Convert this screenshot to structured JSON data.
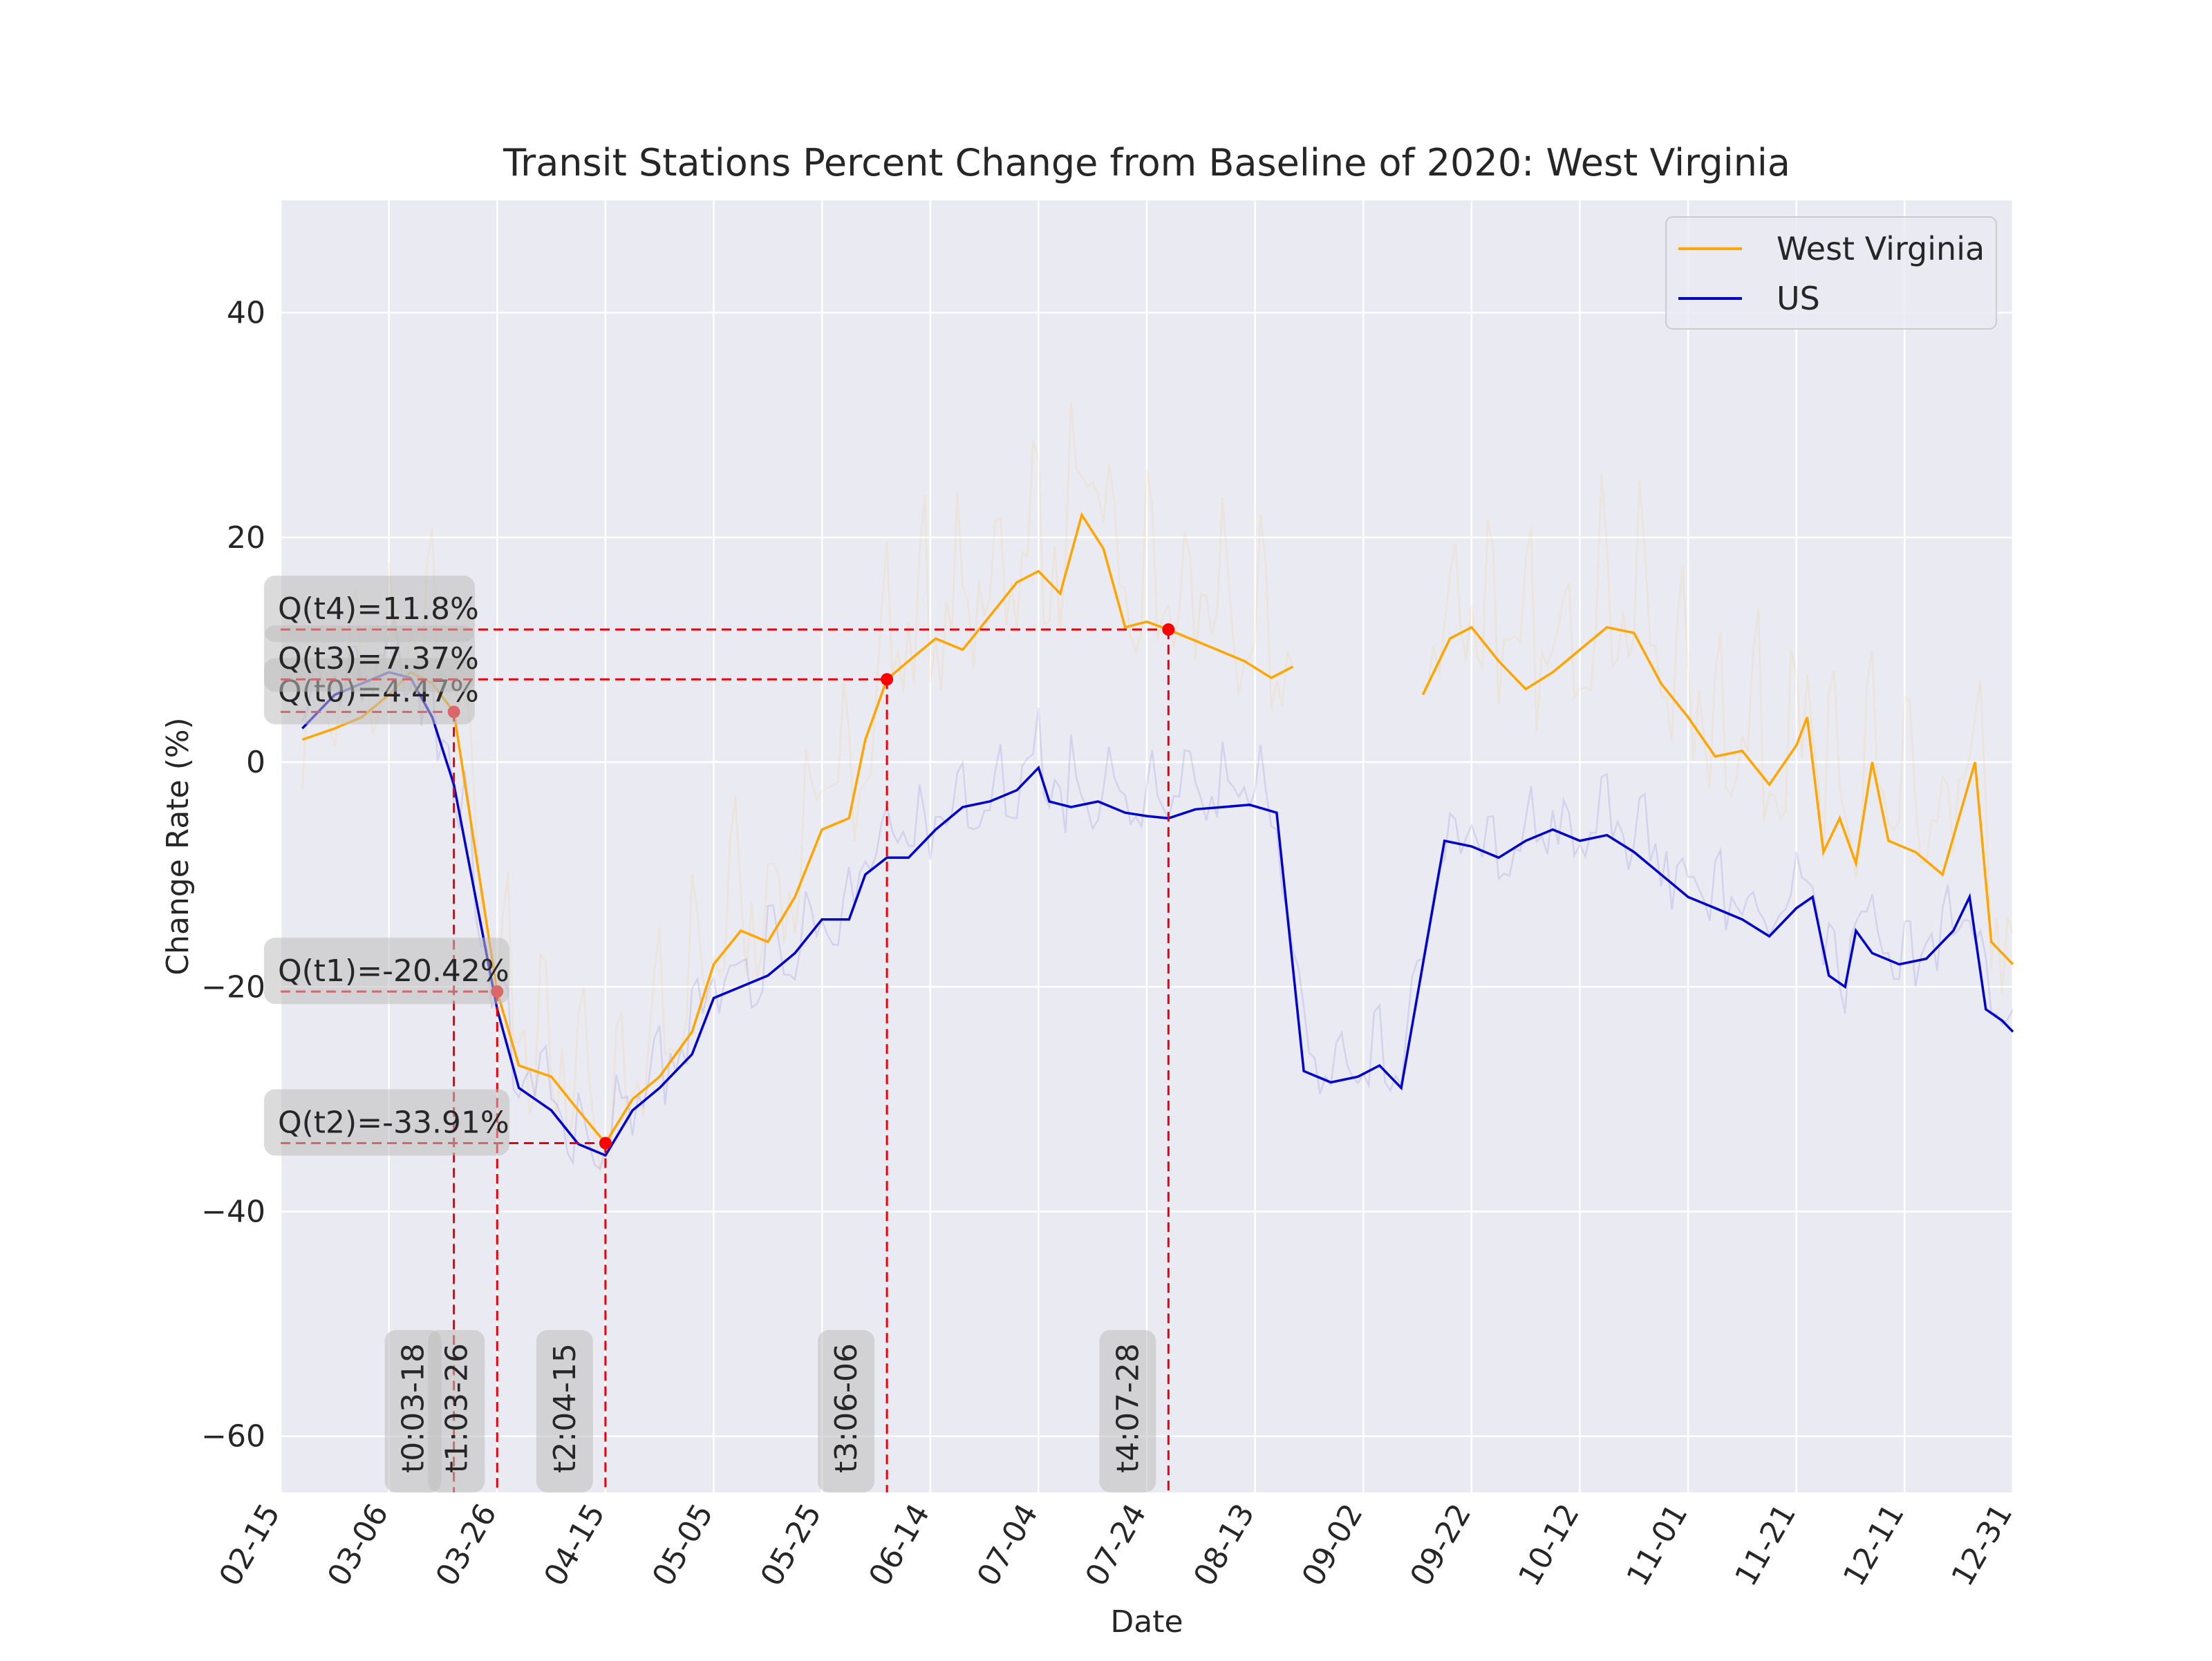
{
  "chart_data": {
    "type": "line",
    "title": "Transit Stations Percent Change from Baseline of 2020: West Virginia",
    "xlabel": "Date",
    "ylabel": "Change Rate (%)",
    "ylim": [
      -65,
      50
    ],
    "yticks": [
      -60,
      -40,
      -20,
      0,
      20,
      40
    ],
    "y_tick_labels": [
      "−60",
      "−40",
      "−20",
      "0",
      "20",
      "40"
    ],
    "x_tick_labels": [
      "02-15",
      "03-06",
      "03-26",
      "04-15",
      "05-05",
      "05-25",
      "06-14",
      "07-04",
      "07-24",
      "08-13",
      "09-02",
      "09-22",
      "10-12",
      "11-01",
      "11-21",
      "12-11",
      "12-31"
    ],
    "x_range": [
      "2020-02-15",
      "2020-12-31"
    ],
    "grid": true,
    "legend_position": "top-right",
    "series": [
      {
        "name": "West Virginia",
        "color": "#ffa500",
        "smoothed": [
          [
            "02-19",
            2
          ],
          [
            "02-25",
            3
          ],
          [
            "03-01",
            4
          ],
          [
            "03-06",
            6
          ],
          [
            "03-10",
            8
          ],
          [
            "03-14",
            7
          ],
          [
            "03-18",
            4.47
          ],
          [
            "03-22",
            -8
          ],
          [
            "03-26",
            -20.42
          ],
          [
            "03-30",
            -27
          ],
          [
            "04-05",
            -28
          ],
          [
            "04-10",
            -31
          ],
          [
            "04-15",
            -33.91
          ],
          [
            "04-20",
            -30
          ],
          [
            "04-25",
            -28
          ],
          [
            "05-01",
            -24
          ],
          [
            "05-05",
            -18
          ],
          [
            "05-10",
            -15
          ],
          [
            "05-15",
            -16
          ],
          [
            "05-20",
            -12
          ],
          [
            "05-25",
            -6
          ],
          [
            "05-30",
            -5
          ],
          [
            "06-02",
            2
          ],
          [
            "06-06",
            7.37
          ],
          [
            "06-10",
            9
          ],
          [
            "06-15",
            11
          ],
          [
            "06-20",
            10
          ],
          [
            "06-25",
            13
          ],
          [
            "06-30",
            16
          ],
          [
            "07-04",
            17
          ],
          [
            "07-08",
            15
          ],
          [
            "07-12",
            22
          ],
          [
            "07-16",
            19
          ],
          [
            "07-20",
            12
          ],
          [
            "07-24",
            12.5
          ],
          [
            "07-28",
            11.8
          ],
          [
            "08-01",
            11
          ],
          [
            "08-06",
            10
          ],
          [
            "08-11",
            9
          ],
          [
            "08-16",
            7.5
          ],
          [
            "08-20",
            8.5
          ]
        ],
        "smoothed_2": [
          [
            "09-13",
            6
          ],
          [
            "09-18",
            11
          ],
          [
            "09-22",
            12
          ],
          [
            "09-27",
            9
          ],
          [
            "10-02",
            6.5
          ],
          [
            "10-07",
            8
          ],
          [
            "10-12",
            10
          ],
          [
            "10-17",
            12
          ],
          [
            "10-22",
            11.5
          ],
          [
            "10-27",
            7
          ],
          [
            "11-01",
            4
          ],
          [
            "11-06",
            0.5
          ],
          [
            "11-11",
            1
          ],
          [
            "11-16",
            -2
          ],
          [
            "11-21",
            1.5
          ],
          [
            "11-23",
            4
          ],
          [
            "11-26",
            -8
          ],
          [
            "11-29",
            -5
          ],
          [
            "12-02",
            -9
          ],
          [
            "12-05",
            0
          ],
          [
            "12-08",
            -7
          ],
          [
            "12-13",
            -8
          ],
          [
            "12-18",
            -10
          ],
          [
            "12-21",
            -5
          ],
          [
            "12-24",
            0
          ],
          [
            "12-27",
            -16
          ],
          [
            "12-31",
            -18
          ]
        ]
      },
      {
        "name": "US",
        "color": "#0000cd",
        "smoothed": [
          [
            "02-19",
            3
          ],
          [
            "02-25",
            6
          ],
          [
            "03-01",
            7
          ],
          [
            "03-06",
            8
          ],
          [
            "03-10",
            7.5
          ],
          [
            "03-14",
            4
          ],
          [
            "03-18",
            -2
          ],
          [
            "03-22",
            -12
          ],
          [
            "03-26",
            -22
          ],
          [
            "03-30",
            -29
          ],
          [
            "04-05",
            -31
          ],
          [
            "04-10",
            -34
          ],
          [
            "04-15",
            -35
          ],
          [
            "04-20",
            -31
          ],
          [
            "04-25",
            -29
          ],
          [
            "05-01",
            -26
          ],
          [
            "05-05",
            -21
          ],
          [
            "05-10",
            -20
          ],
          [
            "05-15",
            -19
          ],
          [
            "05-20",
            -17
          ],
          [
            "05-25",
            -14
          ],
          [
            "05-30",
            -14
          ],
          [
            "06-02",
            -10
          ],
          [
            "06-06",
            -8.5
          ],
          [
            "06-10",
            -8.5
          ],
          [
            "06-15",
            -6
          ],
          [
            "06-20",
            -4
          ],
          [
            "06-25",
            -3.5
          ],
          [
            "06-30",
            -2.5
          ],
          [
            "07-04",
            -0.5
          ],
          [
            "07-06",
            -3.5
          ],
          [
            "07-10",
            -4
          ],
          [
            "07-15",
            -3.5
          ],
          [
            "07-20",
            -4.5
          ],
          [
            "07-24",
            -4.8
          ],
          [
            "07-28",
            -5
          ],
          [
            "08-02",
            -4.2
          ],
          [
            "08-07",
            -4
          ],
          [
            "08-12",
            -3.8
          ],
          [
            "08-17",
            -4.5
          ],
          [
            "08-22",
            -27.5
          ],
          [
            "08-27",
            -28.5
          ],
          [
            "09-01",
            -28
          ],
          [
            "09-05",
            -27
          ],
          [
            "09-09",
            -29
          ],
          [
            "09-17",
            -7
          ],
          [
            "09-22",
            -7.5
          ],
          [
            "09-27",
            -8.5
          ],
          [
            "10-02",
            -7
          ],
          [
            "10-07",
            -6
          ],
          [
            "10-12",
            -7
          ],
          [
            "10-17",
            -6.5
          ],
          [
            "10-22",
            -8
          ],
          [
            "10-27",
            -10
          ],
          [
            "11-01",
            -12
          ],
          [
            "11-06",
            -13
          ],
          [
            "11-11",
            -14
          ],
          [
            "11-16",
            -15.5
          ],
          [
            "11-21",
            -13
          ],
          [
            "11-24",
            -12
          ],
          [
            "11-27",
            -19
          ],
          [
            "11-30",
            -20
          ],
          [
            "12-02",
            -15
          ],
          [
            "12-05",
            -17
          ],
          [
            "12-10",
            -18
          ],
          [
            "12-15",
            -17.5
          ],
          [
            "12-20",
            -15
          ],
          [
            "12-23",
            -12
          ],
          [
            "12-26",
            -22
          ],
          [
            "12-29",
            -23
          ],
          [
            "12-31",
            -24
          ]
        ]
      }
    ],
    "markers": [
      {
        "t": "t0",
        "date": "03-18",
        "value": 4.47,
        "q_label": "Q(t0)=4.47%",
        "t_label": "t0:03-18"
      },
      {
        "t": "t1",
        "date": "03-26",
        "value": -20.42,
        "q_label": "Q(t1)=-20.42%",
        "t_label": "t1:03-26"
      },
      {
        "t": "t2",
        "date": "04-15",
        "value": -33.91,
        "q_label": "Q(t2)=-33.91%",
        "t_label": "t2:04-15"
      },
      {
        "t": "t3",
        "date": "06-06",
        "value": 7.37,
        "q_label": "Q(t3)=7.37%",
        "t_label": "t3:06-06"
      },
      {
        "t": "t4",
        "date": "07-28",
        "value": 11.8,
        "q_label": "Q(t4)=11.8%",
        "t_label": "t4:07-28"
      }
    ]
  }
}
